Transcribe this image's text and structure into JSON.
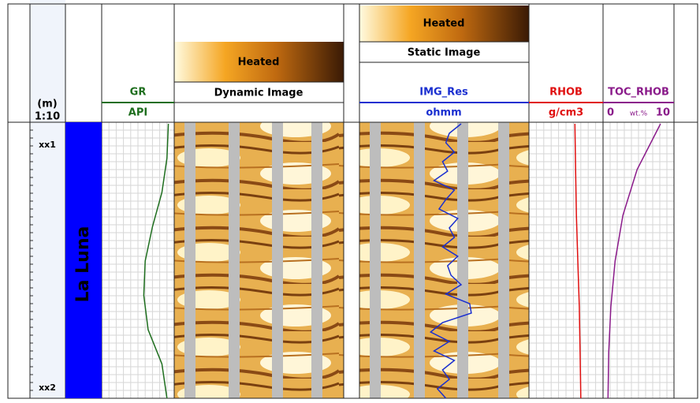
{
  "depth_track": {
    "unit": "(m)",
    "scale": "1:10",
    "depth_labels": [
      "xx1",
      "xx2"
    ]
  },
  "formation": {
    "name": "La Luna",
    "color": "#0000ff"
  },
  "images": [
    {
      "palette": "Heated",
      "title": "Dynamic Image"
    },
    {
      "palette": "Heated",
      "title": "Static Image"
    }
  ],
  "curves": {
    "gr": {
      "name": "GR",
      "unit": "API",
      "color": "#1e6e1e",
      "values": [
        0.92,
        0.9,
        0.83,
        0.7,
        0.6,
        0.58,
        0.64,
        0.83,
        0.9
      ]
    },
    "img_res": {
      "name": "IMG_Res",
      "unit": "ohmm",
      "color": "#1a2fd0",
      "values": [
        0.6,
        0.53,
        0.51,
        0.56,
        0.49,
        0.52,
        0.44,
        0.56,
        0.51,
        0.47,
        0.58,
        0.53,
        0.56,
        0.49,
        0.58,
        0.52,
        0.54,
        0.6,
        0.51,
        0.65,
        0.66,
        0.49,
        0.42,
        0.53,
        0.44,
        0.56,
        0.49,
        0.53,
        0.46,
        0.51
      ]
    },
    "rhob": {
      "name": "RHOB",
      "unit": "g/cm3",
      "color": "#e01010",
      "values": [
        0.62,
        0.63,
        0.64,
        0.66,
        0.68,
        0.69,
        0.7
      ]
    },
    "toc": {
      "name": "TOC_RHOB",
      "unit": "wt.%",
      "color": "#8a1a8a",
      "xlim": [
        0,
        10
      ],
      "values": [
        8.1,
        4.8,
        2.8,
        1.7,
        1.1,
        0.8,
        0.7
      ]
    }
  }
}
